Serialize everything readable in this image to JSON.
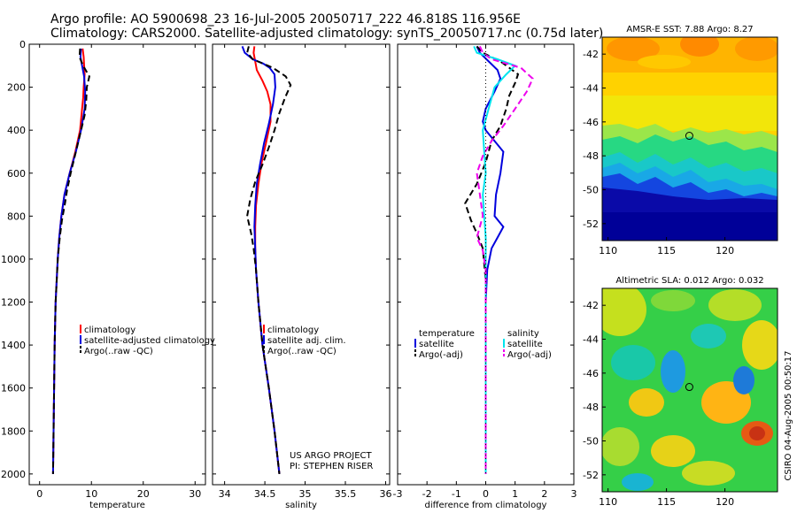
{
  "header": {
    "line1": "Argo profile: AO 5900698_23 16-Jul-2005 20050717_222 46.818S 116.956E",
    "line2": "Climatology: CARS2000. Satellite-adjusted climatology: synTS_20050717.nc (0.75d later)"
  },
  "credit": {
    "line1": "US ARGO PROJECT",
    "line2": "PI: STEPHEN RISER"
  },
  "side_text": "CSIRO 04-Aug-2005 00:50:17",
  "colors": {
    "red": "#ff0000",
    "blue": "#0000dd",
    "black": "#000000",
    "cyan": "#00e5ee",
    "magenta": "#ee00ee"
  },
  "chart_data": [
    {
      "type": "line",
      "id": "temperature",
      "xlabel": "temperature",
      "xlim": [
        -2,
        32
      ],
      "ylim": [
        0,
        2050
      ],
      "xticks": [
        0,
        10,
        20,
        30
      ],
      "yticks": [
        0,
        200,
        400,
        600,
        800,
        1000,
        1200,
        1400,
        1600,
        1800,
        2000
      ],
      "series": [
        {
          "name": "climatology",
          "color": "red",
          "style": "solid",
          "points": [
            [
              8.3,
              20
            ],
            [
              8.5,
              60
            ],
            [
              8.6,
              100
            ],
            [
              8.7,
              140
            ],
            [
              8.5,
              200
            ],
            [
              8.4,
              250
            ],
            [
              8.2,
              300
            ],
            [
              7.8,
              400
            ],
            [
              6.9,
              500
            ],
            [
              5.8,
              600
            ],
            [
              4.8,
              700
            ],
            [
              4.2,
              800
            ],
            [
              3.8,
              900
            ],
            [
              3.5,
              1000
            ],
            [
              3.1,
              1200
            ],
            [
              2.9,
              1400
            ],
            [
              2.8,
              1600
            ],
            [
              2.7,
              1800
            ],
            [
              2.6,
              2000
            ]
          ]
        },
        {
          "name": "satellite-adjusted climatology",
          "color": "blue",
          "style": "solid",
          "points": [
            [
              8.0,
              20
            ],
            [
              7.9,
              60
            ],
            [
              8.2,
              100
            ],
            [
              8.6,
              150
            ],
            [
              8.8,
              220
            ],
            [
              8.7,
              300
            ],
            [
              8.0,
              400
            ],
            [
              7.0,
              500
            ],
            [
              5.8,
              600
            ],
            [
              4.8,
              700
            ],
            [
              4.2,
              800
            ],
            [
              3.8,
              900
            ],
            [
              3.5,
              1000
            ],
            [
              3.1,
              1200
            ],
            [
              2.9,
              1400
            ],
            [
              2.8,
              1600
            ],
            [
              2.7,
              1800
            ],
            [
              2.6,
              2000
            ]
          ]
        },
        {
          "name": "Argo(..raw -QC)",
          "color": "black",
          "style": "dash",
          "points": [
            [
              7.8,
              20
            ],
            [
              7.7,
              60
            ],
            [
              8.4,
              100
            ],
            [
              9.6,
              150
            ],
            [
              9.1,
              200
            ],
            [
              9.0,
              260
            ],
            [
              8.7,
              330
            ],
            [
              7.8,
              420
            ],
            [
              7.0,
              500
            ],
            [
              6.0,
              600
            ],
            [
              5.3,
              680
            ],
            [
              4.9,
              740
            ],
            [
              4.3,
              820
            ],
            [
              3.9,
              900
            ],
            [
              3.5,
              1000
            ],
            [
              3.1,
              1200
            ],
            [
              2.9,
              1400
            ],
            [
              2.8,
              1600
            ],
            [
              2.7,
              1800
            ],
            [
              2.6,
              2000
            ]
          ]
        }
      ],
      "legend": {
        "labels": [
          "climatology",
          "satellite-adjusted climatology",
          "Argo(..raw -QC)"
        ],
        "placement": "lower-right"
      }
    },
    {
      "type": "line",
      "id": "salinity",
      "xlabel": "salinity",
      "xlim": [
        33.85,
        36.05
      ],
      "ylim": [
        0,
        2050
      ],
      "xticks": [
        34,
        34.5,
        35,
        35.5,
        36
      ],
      "yticks": [
        0,
        200,
        400,
        600,
        800,
        1000,
        1200,
        1400,
        1600,
        1800,
        2000
      ],
      "series": [
        {
          "name": "climatology",
          "color": "red",
          "style": "solid",
          "points": [
            [
              34.37,
              10
            ],
            [
              34.36,
              40
            ],
            [
              34.38,
              80
            ],
            [
              34.4,
              120
            ],
            [
              34.47,
              170
            ],
            [
              34.53,
              220
            ],
            [
              34.57,
              280
            ],
            [
              34.57,
              360
            ],
            [
              34.52,
              450
            ],
            [
              34.46,
              550
            ],
            [
              34.42,
              650
            ],
            [
              34.39,
              750
            ],
            [
              34.38,
              850
            ],
            [
              34.38,
              950
            ],
            [
              34.39,
              1050
            ],
            [
              34.42,
              1200
            ],
            [
              34.47,
              1400
            ],
            [
              34.55,
              1600
            ],
            [
              34.62,
              1800
            ],
            [
              34.68,
              2000
            ]
          ]
        },
        {
          "name": "satellite adj. clim.",
          "color": "blue",
          "style": "solid",
          "points": [
            [
              34.22,
              10
            ],
            [
              34.25,
              40
            ],
            [
              34.35,
              70
            ],
            [
              34.48,
              90
            ],
            [
              34.56,
              110
            ],
            [
              34.62,
              140
            ],
            [
              34.63,
              200
            ],
            [
              34.6,
              280
            ],
            [
              34.55,
              370
            ],
            [
              34.49,
              460
            ],
            [
              34.44,
              560
            ],
            [
              34.4,
              650
            ],
            [
              34.38,
              750
            ],
            [
              34.37,
              850
            ],
            [
              34.38,
              950
            ],
            [
              34.39,
              1050
            ],
            [
              34.42,
              1200
            ],
            [
              34.47,
              1400
            ],
            [
              34.55,
              1600
            ],
            [
              34.62,
              1800
            ],
            [
              34.68,
              2000
            ]
          ]
        },
        {
          "name": "Argo(..raw -QC)",
          "color": "black",
          "style": "dash",
          "points": [
            [
              34.3,
              10
            ],
            [
              34.28,
              40
            ],
            [
              34.35,
              70
            ],
            [
              34.6,
              110
            ],
            [
              34.76,
              150
            ],
            [
              34.82,
              190
            ],
            [
              34.75,
              250
            ],
            [
              34.68,
              320
            ],
            [
              34.62,
              400
            ],
            [
              34.55,
              480
            ],
            [
              34.47,
              560
            ],
            [
              34.38,
              640
            ],
            [
              34.32,
              720
            ],
            [
              34.28,
              800
            ],
            [
              34.33,
              880
            ],
            [
              34.36,
              950
            ],
            [
              34.39,
              1050
            ],
            [
              34.42,
              1200
            ],
            [
              34.47,
              1400
            ],
            [
              34.55,
              1600
            ],
            [
              34.62,
              1800
            ],
            [
              34.68,
              2000
            ]
          ]
        }
      ],
      "legend": {
        "labels": [
          "climatology",
          "satellite adj. clim.",
          "Argo(..raw -QC)"
        ],
        "placement": "lower-right"
      }
    },
    {
      "type": "line",
      "id": "difference",
      "xlabel": "difference from climatology",
      "xlim": [
        -3,
        3
      ],
      "ylim": [
        0,
        2050
      ],
      "xticks": [
        -3,
        -2,
        -1,
        0,
        1,
        2,
        3
      ],
      "yticks": [
        0,
        200,
        400,
        600,
        800,
        1000,
        1200,
        1400,
        1600,
        1800,
        2000
      ],
      "series": [
        {
          "name": "satellite (temperature)",
          "color": "blue",
          "style": "solid",
          "points": [
            [
              -0.3,
              10
            ],
            [
              -0.2,
              40
            ],
            [
              0.1,
              80
            ],
            [
              0.4,
              120
            ],
            [
              0.5,
              160
            ],
            [
              0.3,
              220
            ],
            [
              0.0,
              300
            ],
            [
              -0.1,
              360
            ],
            [
              0.0,
              400
            ],
            [
              0.6,
              500
            ],
            [
              0.5,
              600
            ],
            [
              0.35,
              700
            ],
            [
              0.3,
              800
            ],
            [
              0.6,
              850
            ],
            [
              0.4,
              900
            ],
            [
              0.2,
              950
            ],
            [
              0.05,
              1050
            ],
            [
              0.0,
              1200
            ],
            [
              0.0,
              2000
            ]
          ]
        },
        {
          "name": "Argo(-adj) (temperature)",
          "color": "black",
          "style": "dash",
          "points": [
            [
              -0.3,
              10
            ],
            [
              -0.1,
              40
            ],
            [
              0.5,
              80
            ],
            [
              1.1,
              140
            ],
            [
              1.0,
              180
            ],
            [
              0.8,
              240
            ],
            [
              0.7,
              300
            ],
            [
              0.5,
              380
            ],
            [
              0.2,
              450
            ],
            [
              0.0,
              550
            ],
            [
              -0.3,
              650
            ],
            [
              -0.7,
              740
            ],
            [
              -0.5,
              820
            ],
            [
              -0.3,
              880
            ],
            [
              -0.1,
              950
            ],
            [
              0.0,
              1100
            ],
            [
              0.0,
              2000
            ]
          ]
        },
        {
          "name": "satellite (salinity)",
          "color": "cyan",
          "style": "solid",
          "points": [
            [
              -0.4,
              10
            ],
            [
              -0.3,
              40
            ],
            [
              0.4,
              70
            ],
            [
              1.0,
              100
            ],
            [
              0.7,
              140
            ],
            [
              0.3,
              200
            ],
            [
              0.1,
              300
            ],
            [
              -0.1,
              400
            ],
            [
              -0.05,
              500
            ],
            [
              0.0,
              600
            ],
            [
              -0.1,
              700
            ],
            [
              -0.05,
              800
            ],
            [
              0.0,
              900
            ],
            [
              0.0,
              1100
            ],
            [
              0.0,
              1300
            ],
            [
              0.0,
              2000
            ]
          ]
        },
        {
          "name": "Argo(-adj) (salinity)",
          "color": "magenta",
          "style": "dash",
          "points": [
            [
              -0.2,
              10
            ],
            [
              -0.1,
              40
            ],
            [
              0.2,
              70
            ],
            [
              1.2,
              110
            ],
            [
              1.6,
              160
            ],
            [
              1.4,
              220
            ],
            [
              1.0,
              300
            ],
            [
              0.6,
              380
            ],
            [
              0.2,
              450
            ],
            [
              -0.1,
              520
            ],
            [
              -0.3,
              600
            ],
            [
              -0.2,
              700
            ],
            [
              -0.1,
              800
            ],
            [
              -0.3,
              900
            ],
            [
              -0.1,
              960
            ],
            [
              0.0,
              1050
            ],
            [
              0.0,
              2000
            ]
          ]
        },
        {
          "name": "zero",
          "color": "black",
          "style": "dot",
          "points": [
            [
              0,
              0
            ],
            [
              0,
              2000
            ]
          ]
        }
      ],
      "legend": {
        "col1": [
          "temperature",
          "satellite",
          "Argo(-adj)"
        ],
        "col2": [
          "salinity",
          "satellite",
          "Argo(-adj)"
        ],
        "placement": "lower-center"
      }
    },
    {
      "type": "heatmap",
      "id": "sst-map",
      "title": "AMSR-E SST: 7.88 Argo: 8.27",
      "xlim": [
        109.5,
        124.5
      ],
      "ylim": [
        -53,
        -41
      ],
      "xticks": [
        110,
        115,
        120
      ],
      "yticks": [
        -42,
        -44,
        -46,
        -48,
        -50,
        -52
      ],
      "marker": [
        116.956,
        -46.818
      ]
    },
    {
      "type": "heatmap",
      "id": "sla-map",
      "title": "Altimetric SLA: 0.012 Argo: 0.032",
      "xlim": [
        109.5,
        124.5
      ],
      "ylim": [
        -53,
        -41
      ],
      "xticks": [
        110,
        115,
        120
      ],
      "yticks": [
        -42,
        -44,
        -46,
        -48,
        -50,
        -52
      ],
      "marker": [
        116.956,
        -46.818
      ]
    }
  ]
}
